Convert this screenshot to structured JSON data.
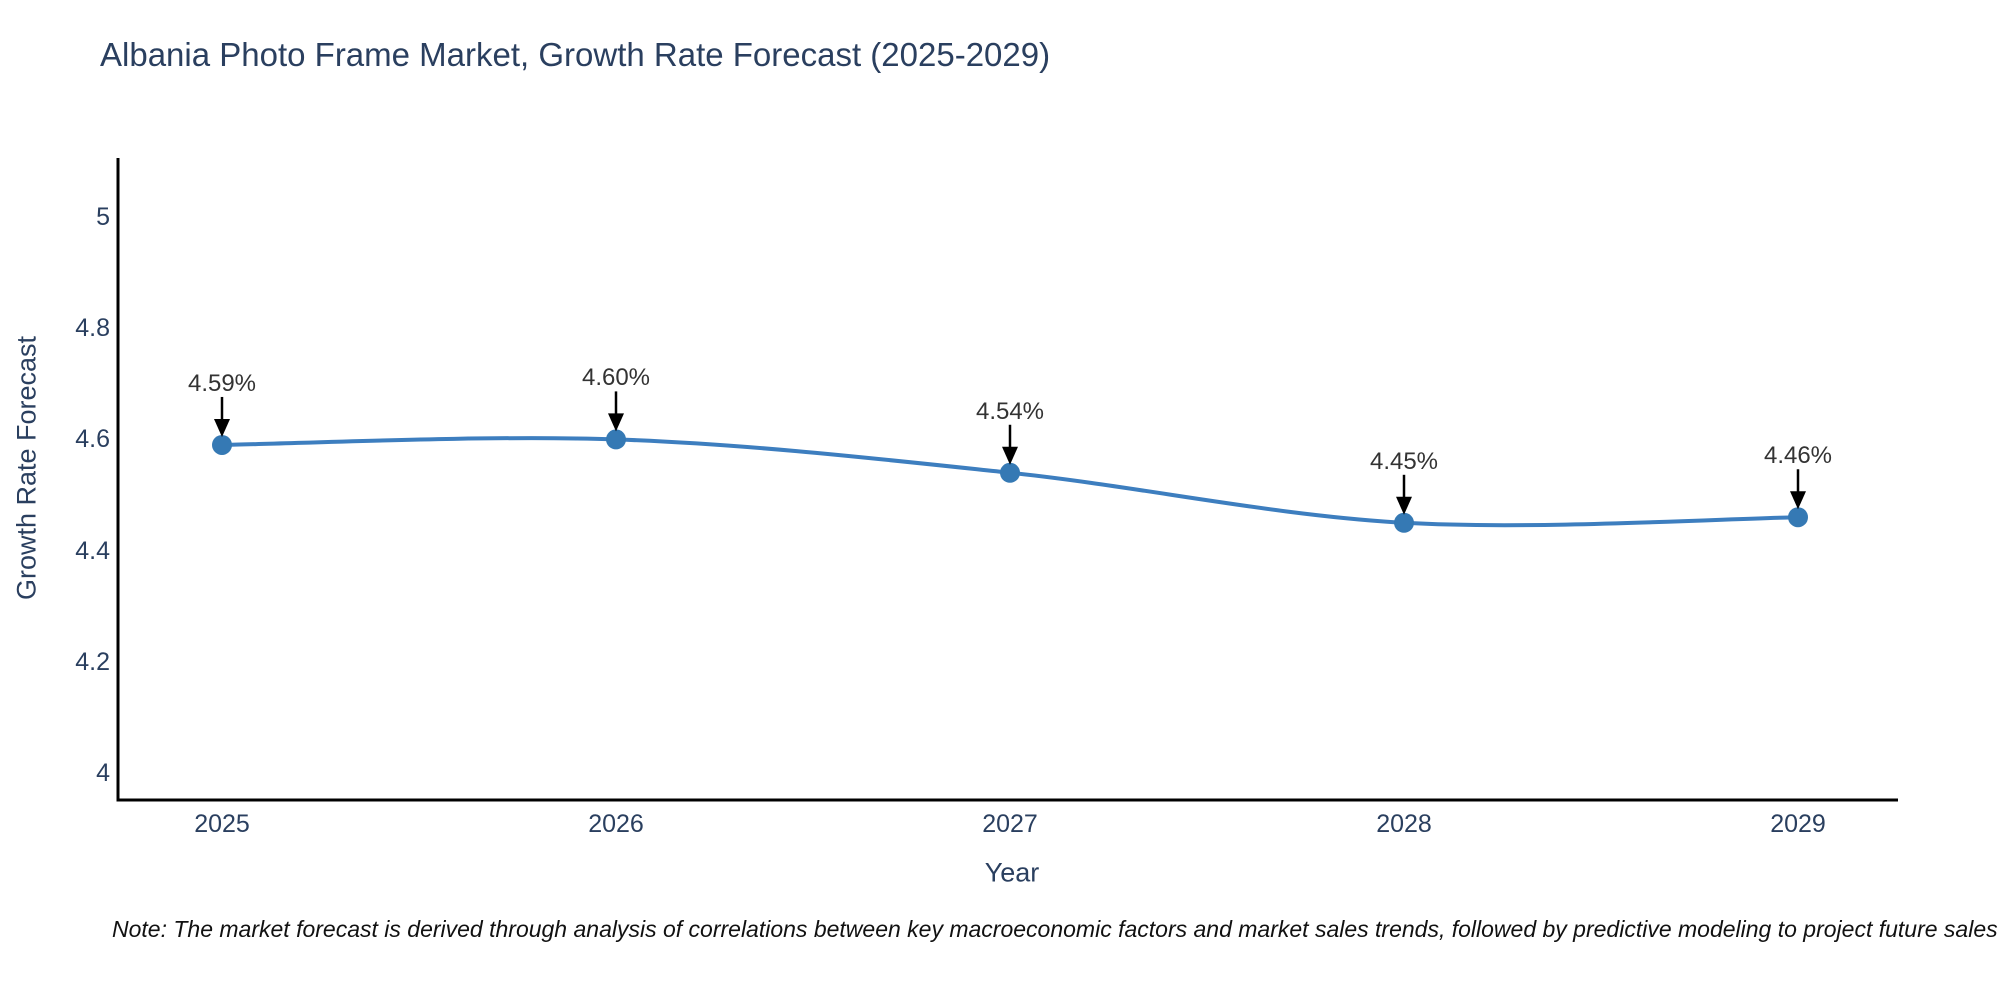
{
  "chart_data": {
    "type": "line",
    "line_shape": "spline",
    "title": "Albania Photo Frame Market, Growth Rate Forecast (2025-2029)",
    "xlabel": "Year",
    "ylabel": "Growth Rate Forecast",
    "note": "Note: The market forecast is derived through analysis of correlations between key macroeconomic factors and market sales trends, followed by predictive modeling to project future sales",
    "x": [
      2025,
      2026,
      2027,
      2028,
      2029
    ],
    "series": [
      {
        "name": "Growth Rate Forecast",
        "values": [
          4.59,
          4.6,
          4.54,
          4.45,
          4.46
        ]
      }
    ],
    "point_labels": [
      "4.59%",
      "4.60%",
      "4.54%",
      "4.45%",
      "4.46%"
    ],
    "x_tick_labels": [
      "2025",
      "2026",
      "2027",
      "2028",
      "2029"
    ],
    "y_ticks": [
      4,
      4.2,
      4.4,
      4.6,
      4.8,
      5
    ],
    "y_tick_labels": [
      "4",
      "4.2",
      "4.4",
      "4.6",
      "4.8",
      "5"
    ],
    "ylim": [
      3.95,
      5.1
    ],
    "grid": false,
    "legend": "none",
    "annotation_arrows": "vertical-down-to-point",
    "colors": {
      "line": "#3d7ebf",
      "marker": "#3579b4",
      "axis": "#000000",
      "arrow": "#000000",
      "title_text": "#2a3f5f",
      "tick_text": "#2a3f5f",
      "annotation_text": "#333333",
      "background": "#ffffff"
    }
  }
}
